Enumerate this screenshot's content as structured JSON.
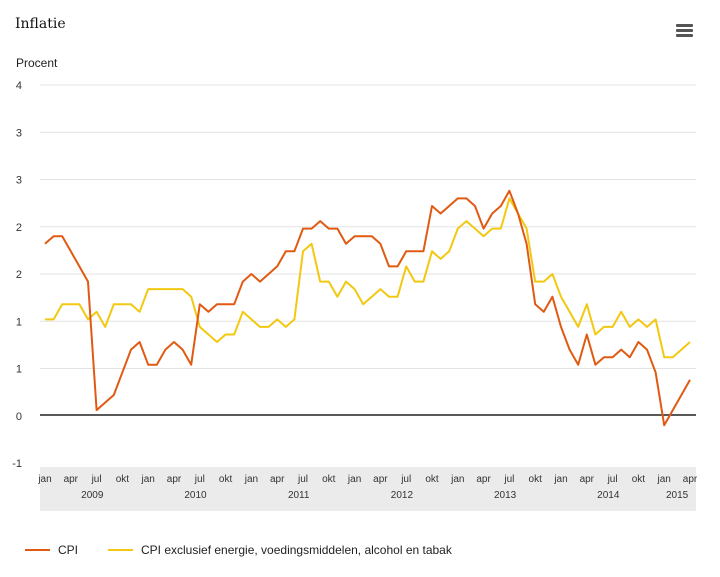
{
  "header": {
    "title": "Inflatie",
    "menu_icon": "hamburger-menu-icon"
  },
  "chart_data": {
    "type": "line",
    "ylabel": "Procent",
    "ylim": [
      -1,
      4
    ],
    "y_tick_labels": [
      "4",
      "3",
      "3",
      "2",
      "2",
      "1",
      "1",
      "0",
      "-1"
    ],
    "month_tick_labels": [
      "jan",
      "apr",
      "jul",
      "okt",
      "jan",
      "apr",
      "jul",
      "okt",
      "jan",
      "apr",
      "jul",
      "okt",
      "jan",
      "apr",
      "jul",
      "okt",
      "jan",
      "apr",
      "jul",
      "okt",
      "jan",
      "apr",
      "jul",
      "okt",
      "jan",
      "apr"
    ],
    "year_labels": [
      "2009",
      "2010",
      "2011",
      "2012",
      "2013",
      "2014",
      "2015"
    ],
    "x_start": "jan 2009",
    "x_end": "apr 2015",
    "grid": "horizontal",
    "legend_position": "bottom-left",
    "series": [
      {
        "name": "CPI",
        "color": "#e05a12",
        "values": [
          1.9,
          2.0,
          2.0,
          1.8,
          1.6,
          1.4,
          -0.3,
          -0.2,
          -0.1,
          0.2,
          0.5,
          0.6,
          0.3,
          0.3,
          0.5,
          0.6,
          0.5,
          0.3,
          1.1,
          1.0,
          1.1,
          1.1,
          1.1,
          1.4,
          1.5,
          1.4,
          1.5,
          1.6,
          1.8,
          1.8,
          2.1,
          2.1,
          2.2,
          2.1,
          2.1,
          1.9,
          2.0,
          2.0,
          2.0,
          1.9,
          1.6,
          1.6,
          1.8,
          1.8,
          1.8,
          2.4,
          2.3,
          2.4,
          2.5,
          2.5,
          2.4,
          2.1,
          2.3,
          2.4,
          2.6,
          2.3,
          1.9,
          1.1,
          1.0,
          1.2,
          0.8,
          0.5,
          0.3,
          0.7,
          0.3,
          0.4,
          0.4,
          0.5,
          0.4,
          0.6,
          0.5,
          0.2,
          -0.5,
          -0.3,
          -0.1,
          0.1
        ]
      },
      {
        "name": "CPI exclusief energie, voedingsmiddelen, alcohol en tabak",
        "color": "#f2c811",
        "values": [
          0.9,
          0.9,
          1.1,
          1.1,
          1.1,
          0.9,
          1.0,
          0.8,
          1.1,
          1.1,
          1.1,
          1.0,
          1.3,
          1.3,
          1.3,
          1.3,
          1.3,
          1.2,
          0.8,
          0.7,
          0.6,
          0.7,
          0.7,
          1.0,
          0.9,
          0.8,
          0.8,
          0.9,
          0.8,
          0.9,
          1.8,
          1.9,
          1.4,
          1.4,
          1.2,
          1.4,
          1.3,
          1.1,
          1.2,
          1.3,
          1.2,
          1.2,
          1.6,
          1.4,
          1.4,
          1.8,
          1.7,
          1.8,
          2.1,
          2.2,
          2.1,
          2.0,
          2.1,
          2.1,
          2.5,
          2.3,
          2.1,
          1.4,
          1.4,
          1.5,
          1.2,
          1.0,
          0.8,
          1.1,
          0.7,
          0.8,
          0.8,
          1.0,
          0.8,
          0.9,
          0.8,
          0.9,
          0.4,
          0.4,
          0.5,
          0.6
        ]
      }
    ]
  }
}
